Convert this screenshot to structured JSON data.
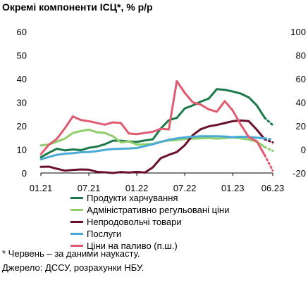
{
  "chart_data": {
    "type": "line",
    "title": "Окремі компоненти ІСЦ*, % р/р",
    "x": [
      "01.21",
      "02.21",
      "03.21",
      "04.21",
      "05.21",
      "06.21",
      "07.21",
      "08.21",
      "09.21",
      "10.21",
      "11.21",
      "12.21",
      "01.22",
      "02.22",
      "03.22",
      "04.22",
      "05.22",
      "06.22",
      "07.22",
      "08.22",
      "09.22",
      "10.22",
      "11.22",
      "12.22",
      "01.23",
      "02.23",
      "03.23",
      "04.23",
      "05.23",
      "06.23"
    ],
    "x_tick_labels": [
      "01.21",
      "07.21",
      "01.22",
      "07.22",
      "01.23",
      "06.23"
    ],
    "y_left": {
      "ticks": [
        0,
        10,
        20,
        30,
        40,
        50,
        60
      ],
      "lim": [
        0,
        60
      ]
    },
    "y_right": {
      "ticks": [
        -20,
        0,
        20,
        40,
        60,
        80,
        100
      ],
      "lim": [
        -20,
        100
      ]
    },
    "forecast_note_month": "06.23",
    "series": [
      {
        "name": "Продукти харчування",
        "axis": "left",
        "color": "#1a7a4a",
        "values": [
          6.7,
          8.6,
          10.3,
          9.6,
          10.0,
          9.7,
          10.7,
          11.2,
          12.2,
          13.7,
          13.7,
          13.4,
          13.2,
          13.8,
          14.3,
          18.9,
          22.4,
          23.4,
          27.4,
          28.7,
          30.3,
          31.6,
          35.6,
          35.3,
          34.6,
          33.7,
          32.1,
          28.7,
          23.4,
          20.3
        ]
      },
      {
        "name": "Адміністративно регульовані ціни",
        "axis": "left",
        "color": "#8fce6b",
        "values": [
          11.7,
          12.1,
          13.3,
          14.6,
          17.0,
          17.8,
          18.4,
          17.3,
          17.0,
          15.6,
          13.0,
          13.4,
          12.1,
          12.2,
          12.4,
          13.3,
          13.8,
          14.0,
          14.4,
          14.6,
          14.7,
          14.9,
          14.6,
          14.8,
          15.1,
          14.7,
          14.2,
          13.3,
          11.0,
          9.4
        ]
      },
      {
        "name": "Непродовольчі товари",
        "axis": "left",
        "color": "#6b0f2e",
        "values": [
          2.6,
          2.7,
          1.8,
          1.0,
          1.3,
          1.5,
          1.4,
          0.5,
          0.3,
          0.0,
          0.4,
          0.2,
          0.5,
          0.2,
          2.4,
          6.3,
          7.7,
          8.9,
          11.8,
          16.1,
          18.6,
          19.8,
          20.4,
          21.2,
          22.0,
          22.3,
          22.0,
          18.4,
          14.3,
          13.0
        ]
      },
      {
        "name": "Послуги",
        "axis": "left",
        "color": "#4aaad6",
        "values": [
          5.8,
          6.8,
          7.7,
          8.2,
          8.4,
          8.8,
          8.9,
          9.3,
          9.8,
          10.2,
          10.3,
          10.4,
          10.6,
          11.4,
          12.2,
          13.2,
          14.1,
          14.7,
          15.1,
          15.4,
          15.6,
          15.6,
          15.6,
          15.5,
          15.2,
          15.4,
          15.3,
          15.0,
          14.7,
          14.3
        ]
      },
      {
        "name": "Ціни на паливо (п.ш.)",
        "axis": "right",
        "color": "#e05a70",
        "values": [
          -4,
          4,
          9,
          18,
          28,
          25,
          24,
          22.5,
          21,
          23,
          22.5,
          13.5,
          13,
          14,
          15,
          17.5,
          17,
          58,
          48,
          40,
          38,
          34,
          32,
          41,
          33,
          21,
          10.5,
          7,
          -5,
          -18
        ]
      }
    ]
  }
}
